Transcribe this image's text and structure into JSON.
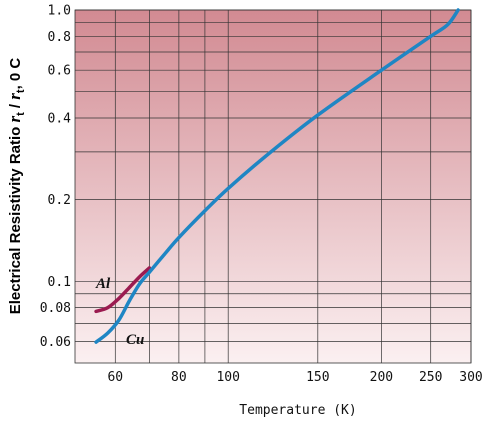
{
  "chart_data": {
    "type": "line",
    "title": "",
    "xlabel": "Temperature (K)",
    "ylabel_main": "Electrical Resistivity Ratio ",
    "ylabel_r1": "r",
    "ylabel_sub1": "t",
    "ylabel_sep": " / ",
    "ylabel_r2": "r",
    "ylabel_sub2": "t",
    "ylabel_tail": ", 0 C",
    "xscale": "log",
    "yscale": "log",
    "xlim": [
      50,
      300
    ],
    "ylim": [
      0.05,
      1.0
    ],
    "xticks": [
      {
        "value": 60,
        "label": "60"
      },
      {
        "value": 80,
        "label": "80"
      },
      {
        "value": 100,
        "label": "100"
      },
      {
        "value": 150,
        "label": "150"
      },
      {
        "value": 200,
        "label": "200"
      },
      {
        "value": 250,
        "label": "250"
      },
      {
        "value": 300,
        "label": "300"
      }
    ],
    "yticks": [
      {
        "value": 0.06,
        "label": "0.06"
      },
      {
        "value": 0.08,
        "label": "0.08"
      },
      {
        "value": 0.1,
        "label": "0.1"
      },
      {
        "value": 0.2,
        "label": "0.2"
      },
      {
        "value": 0.4,
        "label": "0.4"
      },
      {
        "value": 0.6,
        "label": "0.6"
      },
      {
        "value": 0.8,
        "label": "0.8"
      },
      {
        "value": 1.0,
        "label": "1.0"
      }
    ],
    "grid": true,
    "background": {
      "top_color": "#d28a92",
      "bottom_color": "#fbf0f1"
    },
    "series": [
      {
        "name": "Al",
        "color": "#9b1b50",
        "points": [
          [
            55,
            0.0775
          ],
          [
            58,
            0.08
          ],
          [
            61,
            0.0865
          ],
          [
            64,
            0.095
          ],
          [
            67,
            0.104
          ],
          [
            70,
            0.112
          ]
        ]
      },
      {
        "name": "Cu",
        "color": "#1f86c4",
        "points": [
          [
            55,
            0.0597
          ],
          [
            58,
            0.0645
          ],
          [
            61,
            0.072
          ],
          [
            64,
            0.085
          ],
          [
            67,
            0.098
          ],
          [
            70,
            0.108
          ],
          [
            75,
            0.126
          ],
          [
            80,
            0.145
          ],
          [
            90,
            0.182
          ],
          [
            100,
            0.22
          ],
          [
            120,
            0.295
          ],
          [
            150,
            0.41
          ],
          [
            200,
            0.6
          ],
          [
            250,
            0.8
          ],
          [
            270,
            0.883
          ],
          [
            283,
            1.0
          ]
        ]
      }
    ]
  }
}
